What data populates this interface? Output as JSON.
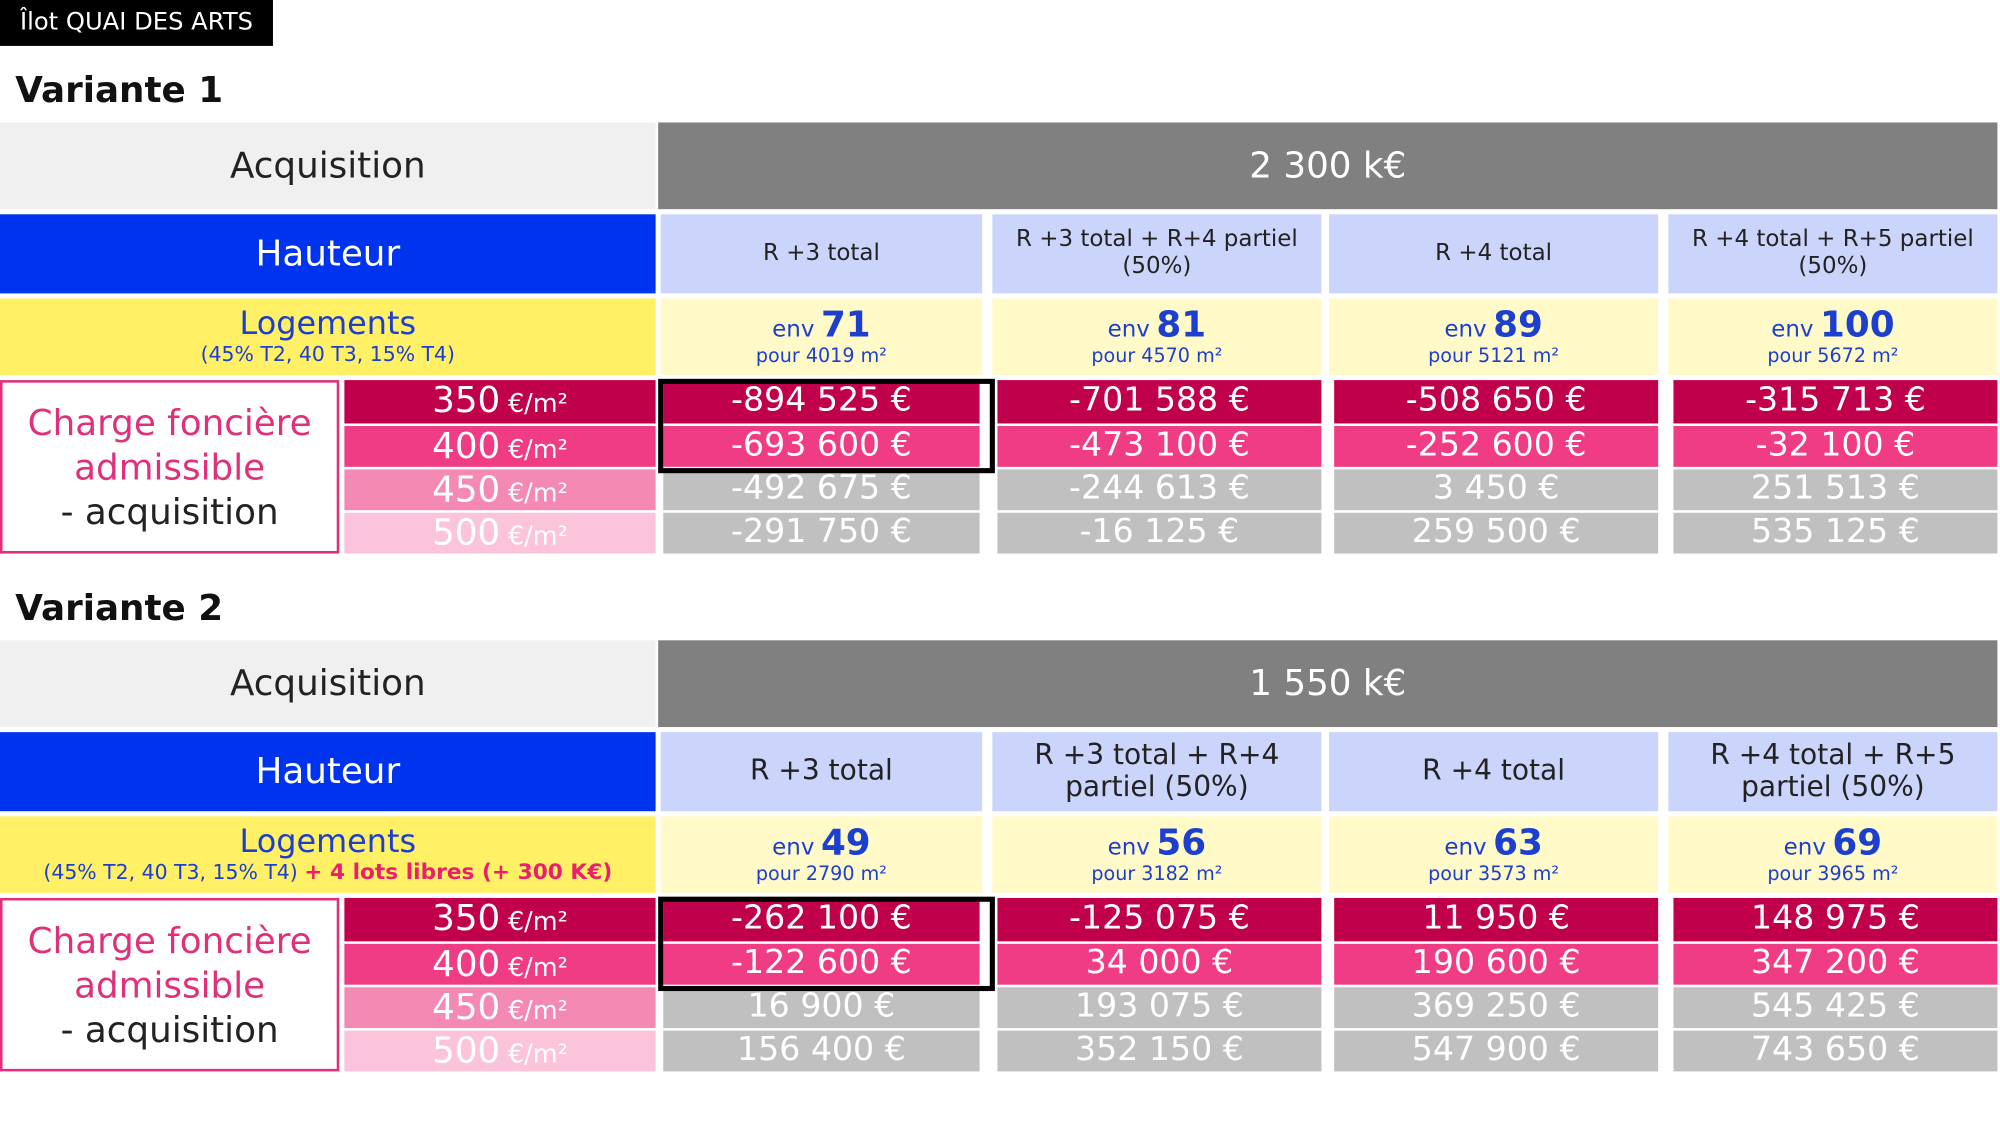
{
  "tag": "Îlot QUAI DES ARTS",
  "variants": [
    {
      "title": "Variante 1",
      "acquisition_label": "Acquisition",
      "acquisition_value": "2 300 k€",
      "hauteur_label": "Hauteur",
      "logements_label": "Logements",
      "logements_detail": "(45% T2, 40 T3, 15% T4)",
      "charge_label": [
        "Charge foncière",
        "admissible",
        "- acquisition"
      ],
      "columns": [
        {
          "hauteur": "R +3 total",
          "env": "env",
          "count": 71,
          "surface": "pour 4019 m²"
        },
        {
          "hauteur": "R +3 total + R+4 partiel (50%)",
          "env": "env",
          "count": 81,
          "surface": "pour 4570 m²"
        },
        {
          "hauteur": "R +4 total",
          "env": "env",
          "count": 89,
          "surface": "pour 5121 m²"
        },
        {
          "hauteur": "R +4 total + R+5 partiel (50%)",
          "env": "env",
          "count": 100,
          "surface": "pour 5672 m²"
        }
      ],
      "rates": [
        {
          "rate": 350,
          "unit": "€/m²",
          "values": [
            "-894 525 €",
            "-701 588 €",
            "-508 650 €",
            "-315 713 €"
          ]
        },
        {
          "rate": 400,
          "unit": "€/m²",
          "values": [
            "-693 600 €",
            "-473 100 €",
            "-252 600 €",
            "-32 100 €"
          ]
        },
        {
          "rate": 450,
          "unit": "€/m²",
          "values": [
            "-492 675 €",
            "-244 613 €",
            "3 450 €",
            "251 513 €"
          ]
        },
        {
          "rate": 500,
          "unit": "€/m²",
          "values": [
            "-291 750 €",
            "-16 125 €",
            "259 500 €",
            "535 125 €"
          ]
        }
      ]
    },
    {
      "title": "Variante 2",
      "acquisition_label": "Acquisition",
      "acquisition_value": "1 550 k€",
      "hauteur_label": "Hauteur",
      "logements_label": "Logements",
      "logements_detail": "(45% T2, 40 T3, 15% T4)",
      "logements_extra": "+ 4 lots libres (+ 300 K€)",
      "charge_label": [
        "Charge foncière",
        "admissible",
        "- acquisition"
      ],
      "columns": [
        {
          "hauteur": "R +3 total",
          "env": "env",
          "count": 49,
          "surface": "pour 2790 m²"
        },
        {
          "hauteur": "R +3 total + R+4 partiel (50%)",
          "env": "env",
          "count": 56,
          "surface": "pour 3182 m²"
        },
        {
          "hauteur": "R +4 total",
          "env": "env",
          "count": 63,
          "surface": "pour 3573 m²"
        },
        {
          "hauteur": "R +4 total + R+5 partiel (50%)",
          "env": "env",
          "count": 69,
          "surface": "pour 3965 m²"
        }
      ],
      "rates": [
        {
          "rate": 350,
          "unit": "€/m²",
          "values": [
            "-262 100 €",
            "-125 075 €",
            "11 950 €",
            "148 975 €"
          ]
        },
        {
          "rate": 400,
          "unit": "€/m²",
          "values": [
            "-122 600 €",
            "34 000 €",
            "190 600 €",
            "347 200 €"
          ]
        },
        {
          "rate": 450,
          "unit": "€/m²",
          "values": [
            "16 900 €",
            "193 075 €",
            "369 250 €",
            "545 425 €"
          ]
        },
        {
          "rate": 500,
          "unit": "€/m²",
          "values": [
            "156 400 €",
            "352 150 €",
            "547 900 €",
            "743 650 €"
          ]
        }
      ]
    }
  ]
}
